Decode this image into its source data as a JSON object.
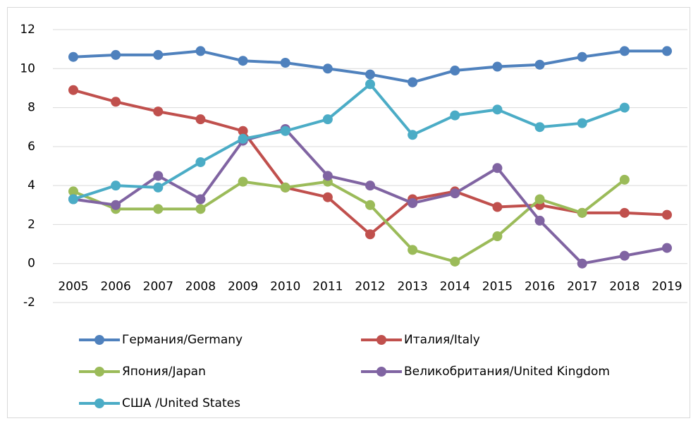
{
  "chart_data": {
    "type": "line",
    "categories": [
      "2005",
      "2006",
      "2007",
      "2008",
      "2009",
      "2010",
      "2011",
      "2012",
      "2013",
      "2014",
      "2015",
      "2016",
      "2017",
      "2018",
      "2019"
    ],
    "series": [
      {
        "name": "Германия/Germany",
        "color": "#4f81bd",
        "values": [
          10.6,
          10.7,
          10.7,
          10.9,
          10.4,
          10.3,
          10.0,
          9.7,
          9.3,
          9.9,
          10.1,
          10.2,
          10.6,
          10.9,
          10.9
        ]
      },
      {
        "name": "Италия/Italy",
        "color": "#c0504d",
        "values": [
          8.9,
          8.3,
          7.8,
          7.4,
          6.8,
          3.9,
          3.4,
          1.5,
          3.3,
          3.7,
          2.9,
          3.0,
          2.6,
          2.6,
          2.5
        ]
      },
      {
        "name": "Япония/Japan",
        "color": "#9bbb59",
        "values": [
          3.7,
          2.8,
          2.8,
          2.8,
          4.2,
          3.9,
          4.2,
          3.0,
          0.7,
          0.1,
          1.4,
          3.3,
          2.6,
          4.3,
          null
        ]
      },
      {
        "name": "Великобритания/United Kingdom",
        "color": "#8064a2",
        "values": [
          3.3,
          3.0,
          4.5,
          3.3,
          6.3,
          6.9,
          4.5,
          4.0,
          3.1,
          3.6,
          4.9,
          2.2,
          0.0,
          0.4,
          0.8
        ]
      },
      {
        "name": "США /United States",
        "color": "#4bacc6",
        "values": [
          3.3,
          4.0,
          3.9,
          5.2,
          6.4,
          6.8,
          7.4,
          9.2,
          6.6,
          7.6,
          7.9,
          7.0,
          7.2,
          8.0,
          null
        ]
      }
    ],
    "ylim": [
      -2,
      12
    ],
    "yticks": [
      -2,
      0,
      2,
      4,
      6,
      8,
      10,
      12
    ],
    "grid": true,
    "legend": "bottom"
  }
}
